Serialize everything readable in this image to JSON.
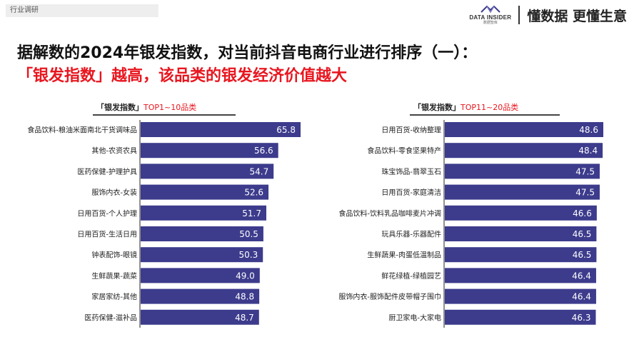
{
  "header": {
    "section_tag": "行业调研",
    "brand_name": "DATA INSIDER",
    "brand_sub": "数据智库",
    "slogan": "懂数据 更懂生意"
  },
  "title": "据解数的2024年银发指数，对当前抖音电商行业进行排序（一）：",
  "subtitle": "「银发指数」越高，该品类的银发经济价值越大",
  "colors": {
    "bar": "#3c3b8c",
    "accent_red": "#e8161f",
    "axis": "#222222"
  },
  "chart_data": [
    {
      "type": "bar",
      "orientation": "horizontal",
      "title_prefix": "「银发指数」",
      "title_suffix": "TOP1~10品类",
      "categories": [
        "食品饮料-粮油米面南北干货调味品",
        "其他-农资农具",
        "医药保健-护理护具",
        "服饰内衣-女装",
        "日用百货-个人护理",
        "日用百货-生活日用",
        "钟表配饰-眼镜",
        "生鲜蔬果-蔬菜",
        "家居家纺-其他",
        "医药保健-滋补品"
      ],
      "values": [
        65.8,
        56.6,
        54.7,
        52.6,
        51.7,
        50.5,
        50.3,
        49.0,
        48.8,
        48.7
      ],
      "value_labels": [
        "65.8",
        "56.6",
        "54.7",
        "52.6",
        "51.7",
        "50.5",
        "50.3",
        "49.0",
        "48.8",
        "48.7"
      ],
      "xlim": [
        0,
        65.8
      ]
    },
    {
      "type": "bar",
      "orientation": "horizontal",
      "title_prefix": "「银发指数」",
      "title_suffix": "TOP11~20品类",
      "categories": [
        "日用百货-收纳整理",
        "食品饮料-零食坚果特产",
        "珠宝饰品-翡翠玉石",
        "日用百货-家庭清洁",
        "食品饮料-饮料乳品咖啡麦片冲调",
        "玩具乐器-乐器配件",
        "生鲜蔬果-肉蛋低温制品",
        "鲜花绿植-绿植园艺",
        "服饰内衣-服饰配件皮带帽子围巾",
        "厨卫家电-大家电"
      ],
      "values": [
        48.6,
        48.4,
        47.5,
        47.5,
        46.6,
        46.5,
        46.5,
        46.4,
        46.4,
        46.3
      ],
      "value_labels": [
        "48.6",
        "48.4",
        "47.5",
        "47.5",
        "46.6",
        "46.5",
        "46.5",
        "46.4",
        "46.4",
        "46.3"
      ],
      "xlim": [
        0,
        48.6
      ]
    }
  ]
}
